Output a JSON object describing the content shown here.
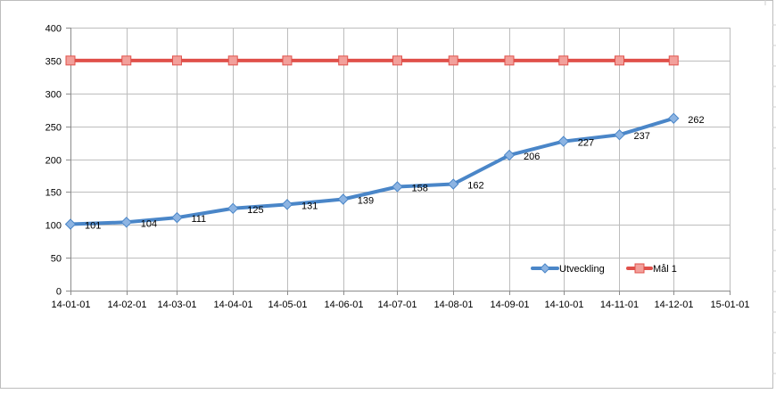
{
  "chart_data": {
    "type": "line",
    "title": "",
    "xlabel": "",
    "ylabel": "",
    "x_ticks": [
      "14-01-01",
      "14-02-01",
      "14-03-01",
      "14-04-01",
      "14-05-01",
      "14-06-01",
      "14-07-01",
      "14-08-01",
      "14-09-01",
      "14-10-01",
      "14-11-01",
      "14-12-01",
      "15-01-01"
    ],
    "x": [
      "2014-01-01",
      "2014-02-01",
      "2014-03-01",
      "2014-04-01",
      "2014-05-01",
      "2014-06-01",
      "2014-07-01",
      "2014-08-01",
      "2014-09-01",
      "2014-10-01",
      "2014-11-01",
      "2014-12-01"
    ],
    "xlim": [
      "2014-01-01",
      "2015-01-01"
    ],
    "ylim": [
      0,
      400
    ],
    "y_ticks": [
      0,
      50,
      100,
      150,
      200,
      250,
      300,
      350,
      400
    ],
    "grid": true,
    "legend_position": "bottom-right",
    "series": [
      {
        "name": "Utveckling",
        "color": "#4a86c8",
        "marker": "diamond",
        "data_labels": true,
        "values": [
          101,
          104,
          111,
          125,
          131,
          139,
          158,
          162,
          206,
          227,
          237,
          262
        ]
      },
      {
        "name": "Mål 1",
        "color": "#e0504a",
        "marker": "square",
        "data_labels": false,
        "values": [
          350,
          350,
          350,
          350,
          350,
          350,
          350,
          350,
          350,
          350,
          350,
          350
        ]
      }
    ]
  }
}
